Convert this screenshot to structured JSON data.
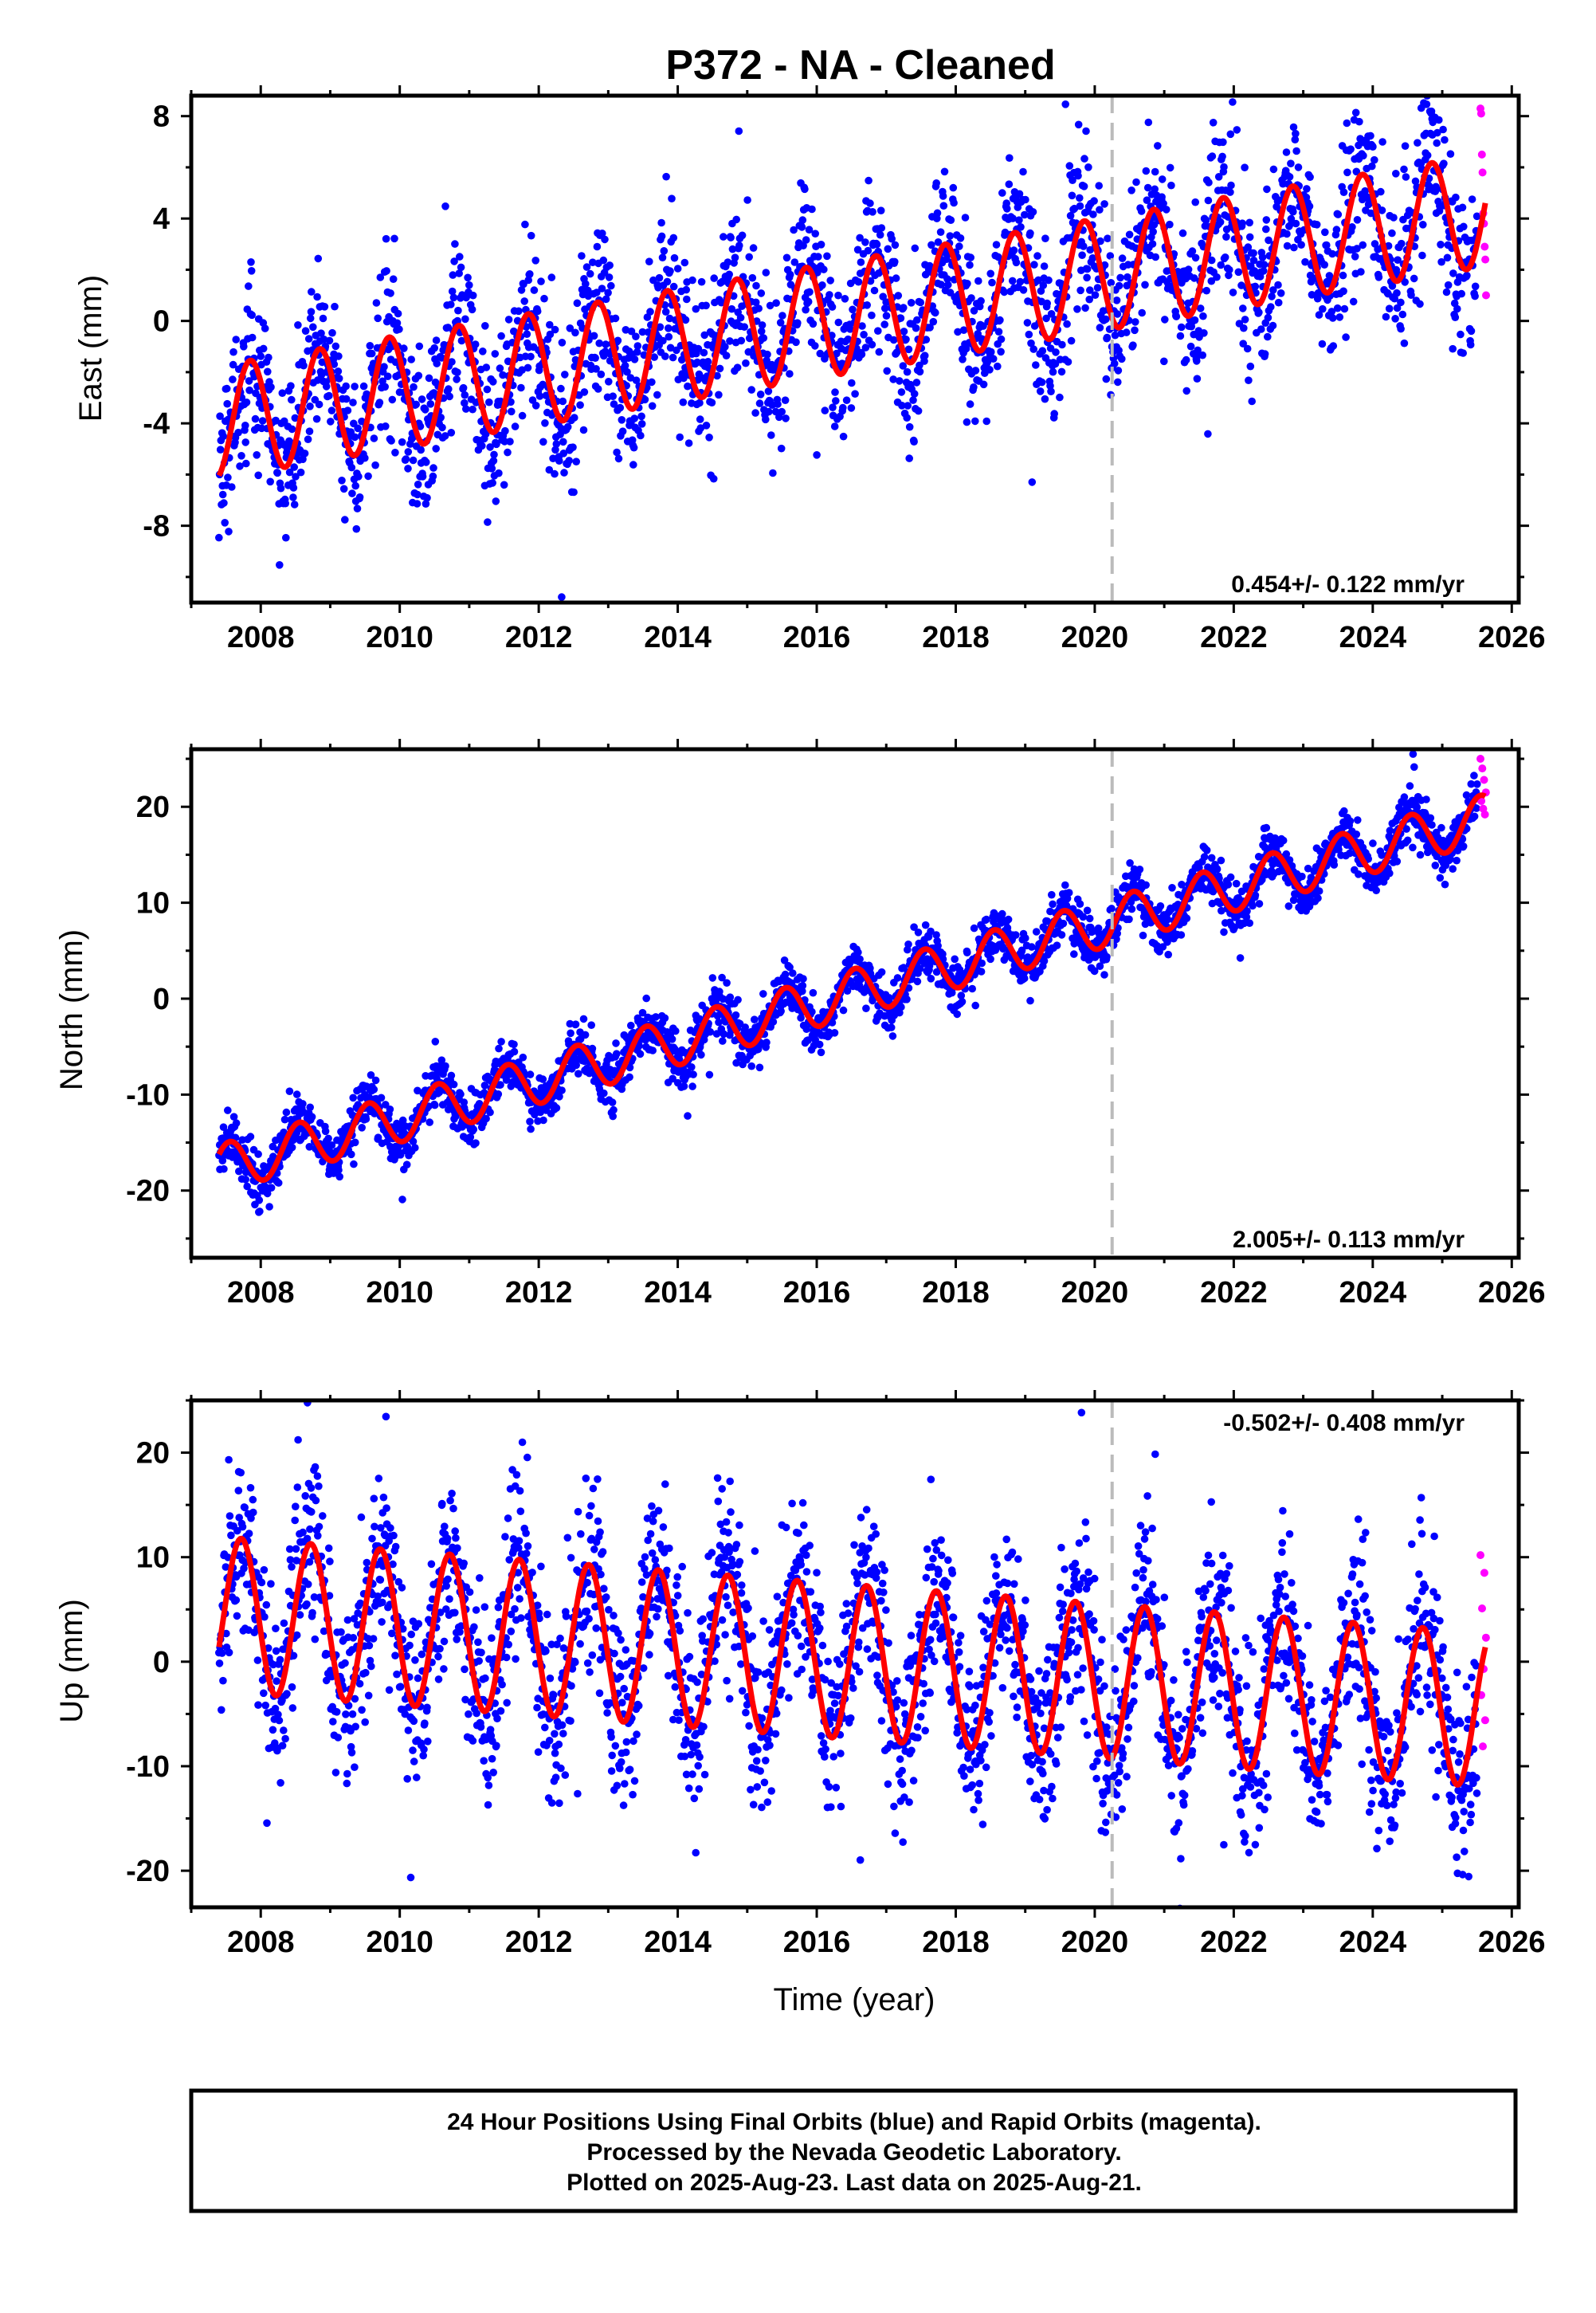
{
  "chart_data": {
    "type": "scatter",
    "title": "P372  - NA - Cleaned",
    "xlabel": "Time (year)",
    "xlim": [
      2007.0,
      2026.1
    ],
    "xticks": [
      "2008",
      "2010",
      "2012",
      "2014",
      "2016",
      "2018",
      "2020",
      "2022",
      "2024",
      "2026"
    ],
    "event_line_year": 2020.25,
    "colors": {
      "final": "#0000ff",
      "rapid": "#ff00ff",
      "model": "#ff0000",
      "event": "#bbbbbb"
    },
    "panels": [
      {
        "name": "East",
        "ylabel": "East (mm)",
        "ylim": [
          -11,
          8.8
        ],
        "yticks": [
          "8",
          "4",
          "0",
          "-4",
          "-8"
        ],
        "rate_label": "0.454+/- 0.122 mm/yr",
        "rate_position": "bottom-right",
        "model": {
          "offset": -3.9,
          "rate": 0.454,
          "amplitude": 2.2,
          "phase_year": 2007.85,
          "start": 2007.4,
          "end": 2025.62
        },
        "scatter_sigma": 1.6,
        "final_range": [
          2007.4,
          2025.5
        ],
        "rapid_range": [
          2025.55,
          2025.64
        ],
        "rapid_values": [
          8.3,
          8.1,
          6.5,
          5.8,
          4.2,
          3.8,
          2.9,
          2.4,
          1.0
        ]
      },
      {
        "name": "North",
        "ylabel": "North (mm)",
        "ylim": [
          -27,
          26
        ],
        "yticks": [
          "20",
          "10",
          "0",
          "-10",
          "-20"
        ],
        "rate_label": "2.005+/- 0.113 mm/yr",
        "rate_position": "bottom-right",
        "model": {
          "offset": -17.5,
          "rate": 2.005,
          "amplitude": 2.5,
          "phase_year": 2007.55,
          "start": 2007.4,
          "end": 2025.62
        },
        "scatter_sigma": 1.3,
        "final_range": [
          2007.4,
          2025.5
        ],
        "rapid_range": [
          2025.55,
          2025.64
        ],
        "rapid_values": [
          25.0,
          24.0,
          22.8,
          21.5,
          20.6,
          19.8,
          19.2
        ]
      },
      {
        "name": "Up",
        "ylabel": "Up (mm)",
        "ylim": [
          -23.5,
          25
        ],
        "yticks": [
          "20",
          "10",
          "0",
          "-10",
          "-20"
        ],
        "rate_label": "-0.502+/- 0.408 mm/yr",
        "rate_position": "top-right",
        "model": {
          "offset": 4.5,
          "rate": -0.502,
          "amplitude": 7.4,
          "phase_year": 2007.72,
          "start": 2007.4,
          "end": 2025.62
        },
        "scatter_sigma": 4.3,
        "final_range": [
          2007.4,
          2025.5
        ],
        "rapid_range": [
          2025.55,
          2025.64
        ],
        "rapid_values": [
          10.2,
          8.5,
          5.1,
          2.3,
          -0.7,
          -3.2,
          -5.6,
          -8.1
        ]
      }
    ],
    "footer": [
      "24 Hour Positions Using Final Orbits (blue) and Rapid Orbits (magenta).",
      "Processed by the Nevada Geodetic Laboratory.",
      "Plotted on 2025-Aug-23. Last data on 2025-Aug-21."
    ]
  }
}
